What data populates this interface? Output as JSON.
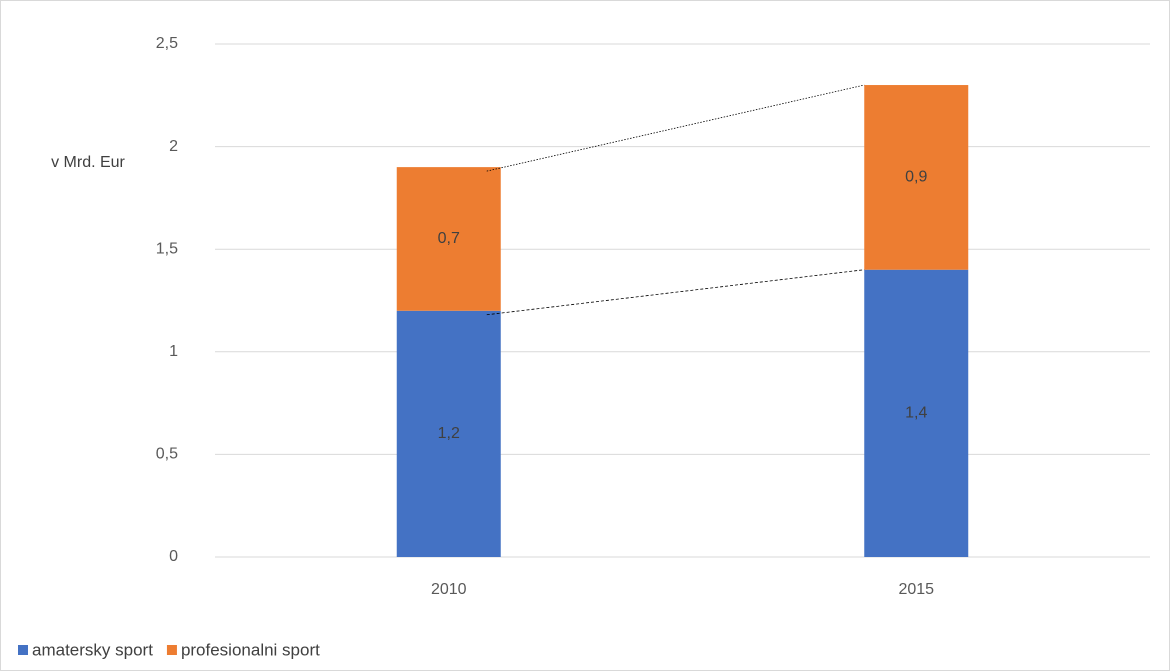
{
  "chart_data": {
    "type": "stacked_bar",
    "y_label": "v Mrd. Eur",
    "categories": [
      "2010",
      "2015"
    ],
    "series": [
      {
        "name": "amatersky sport",
        "color": "#4472c4",
        "values": [
          1.2,
          1.4
        ],
        "value_labels": [
          "1,2",
          "1,4"
        ]
      },
      {
        "name": "profesionalni sport",
        "color": "#ed7d31",
        "values": [
          0.7,
          0.9
        ],
        "value_labels": [
          "0,7",
          "0,9"
        ]
      }
    ],
    "ylim": [
      0,
      2.5
    ],
    "yticks": [
      0,
      {
        "value": 0.5,
        "label": "0,5"
      },
      1,
      {
        "value": 1.5,
        "label": "1,5"
      },
      2,
      {
        "value": 2.5,
        "label": "2,5"
      }
    ],
    "grid": true,
    "legend": "bottom-left"
  }
}
